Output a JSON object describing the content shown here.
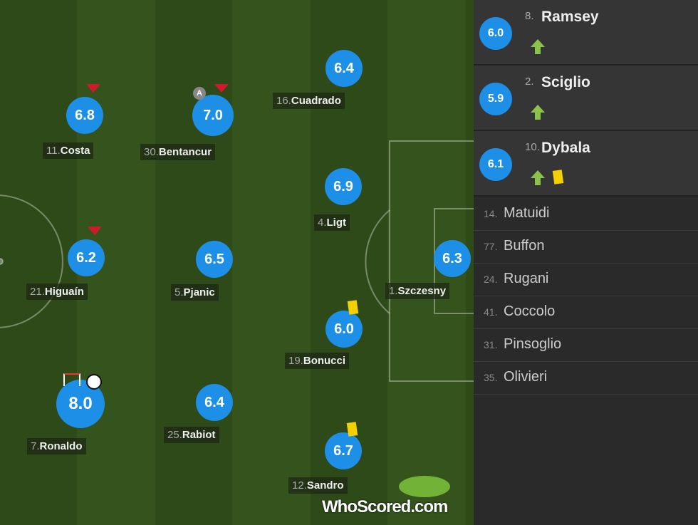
{
  "lineup": [
    {
      "number": "11.",
      "name": "Costa",
      "rating": "6.8"
    },
    {
      "number": "30.",
      "name": "Bentancur",
      "rating": "7.0",
      "badge": "A"
    },
    {
      "number": "16.",
      "name": "Cuadrado",
      "rating": "6.4"
    },
    {
      "number": "4.",
      "name": "Ligt",
      "rating": "6.9"
    },
    {
      "number": "21.",
      "name": "Higuaín",
      "rating": "6.2"
    },
    {
      "number": "5.",
      "name": "Pjanic",
      "rating": "6.5"
    },
    {
      "number": "1.",
      "name": "Szczesny",
      "rating": "6.3"
    },
    {
      "number": "19.",
      "name": "Bonucci",
      "rating": "6.0"
    },
    {
      "number": "7.",
      "name": "Ronaldo",
      "rating": "8.0"
    },
    {
      "number": "25.",
      "name": "Rabiot",
      "rating": "6.4"
    },
    {
      "number": "12.",
      "name": "Sandro",
      "rating": "6.7"
    }
  ],
  "substitutes": [
    {
      "number": "8.",
      "name": "Ramsey",
      "rating": "6.0"
    },
    {
      "number": "2.",
      "name": "Sciglio",
      "rating": "5.9"
    },
    {
      "number": "10.",
      "name": "Dybala",
      "rating": "6.1"
    }
  ],
  "bench": [
    {
      "number": "14.",
      "name": "Matuidi"
    },
    {
      "number": "77.",
      "name": "Buffon"
    },
    {
      "number": "24.",
      "name": "Rugani"
    },
    {
      "number": "41.",
      "name": "Coccolo"
    },
    {
      "number": "31.",
      "name": "Pinsoglio"
    },
    {
      "number": "35.",
      "name": "Olivieri"
    }
  ],
  "logo": {
    "brand": "WhoScored",
    "suffix": ".com"
  }
}
